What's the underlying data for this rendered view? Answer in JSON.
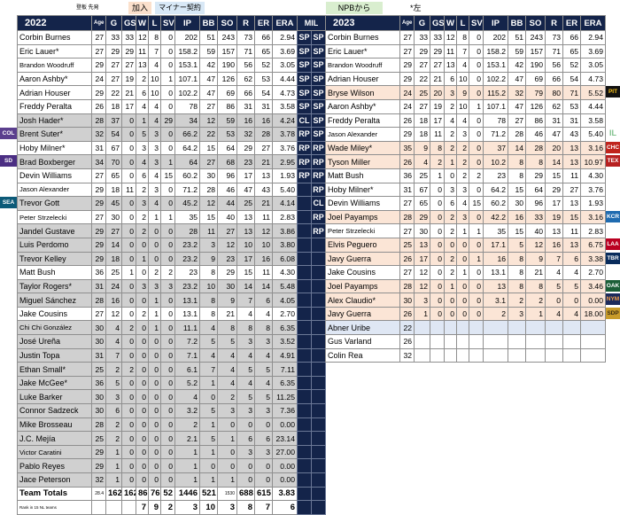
{
  "legend": {
    "tiny": "登板  先発",
    "joined": "加入",
    "minor": "マイナー契約",
    "npb": "NPBから",
    "lefty": "*左"
  },
  "left": {
    "headers": [
      "2022",
      "Age",
      "G",
      "GS",
      "W",
      "L",
      "SV",
      "IP",
      "BB",
      "SO",
      "R",
      "ER",
      "ERA"
    ],
    "rows": [
      {
        "c": "w",
        "cells": [
          "Corbin Burnes",
          "27",
          "33",
          "33",
          "12",
          "8",
          "0",
          "202",
          "51",
          "243",
          "73",
          "66",
          "2.94"
        ]
      },
      {
        "c": "w",
        "cells": [
          "Eric Lauer*",
          "27",
          "29",
          "29",
          "11",
          "7",
          "0",
          "158.2",
          "59",
          "157",
          "71",
          "65",
          "3.69"
        ]
      },
      {
        "c": "w",
        "cells": [
          "Brandon Woodruff",
          "29",
          "27",
          "27",
          "13",
          "4",
          "0",
          "153.1",
          "42",
          "190",
          "56",
          "52",
          "3.05"
        ]
      },
      {
        "c": "w",
        "cells": [
          "Aaron Ashby*",
          "24",
          "27",
          "19",
          "2",
          "10",
          "1",
          "107.1",
          "47",
          "126",
          "62",
          "53",
          "4.44"
        ]
      },
      {
        "c": "w",
        "cells": [
          "Adrian Houser",
          "29",
          "22",
          "21",
          "6",
          "10",
          "0",
          "102.2",
          "47",
          "69",
          "66",
          "54",
          "4.73"
        ]
      },
      {
        "c": "w",
        "cells": [
          "Freddy Peralta",
          "26",
          "18",
          "17",
          "4",
          "4",
          "0",
          "78",
          "27",
          "86",
          "31",
          "31",
          "3.58"
        ]
      },
      {
        "c": "g",
        "cells": [
          "Josh Hader*",
          "28",
          "37",
          "0",
          "1",
          "4",
          "29",
          "34",
          "12",
          "59",
          "16",
          "16",
          "4.24"
        ]
      },
      {
        "c": "g",
        "cells": [
          "Brent Suter*",
          "32",
          "54",
          "0",
          "5",
          "3",
          "0",
          "66.2",
          "22",
          "53",
          "32",
          "28",
          "3.78"
        ]
      },
      {
        "c": "w",
        "cells": [
          "Hoby Milner*",
          "31",
          "67",
          "0",
          "3",
          "3",
          "0",
          "64.2",
          "15",
          "64",
          "29",
          "27",
          "3.76"
        ]
      },
      {
        "c": "g",
        "cells": [
          "Brad Boxberger",
          "34",
          "70",
          "0",
          "4",
          "3",
          "1",
          "64",
          "27",
          "68",
          "23",
          "21",
          "2.95"
        ]
      },
      {
        "c": "w",
        "cells": [
          "Devin Williams",
          "27",
          "65",
          "0",
          "6",
          "4",
          "15",
          "60.2",
          "30",
          "96",
          "17",
          "13",
          "1.93"
        ]
      },
      {
        "c": "w",
        "cells": [
          "Jason Alexander",
          "29",
          "18",
          "11",
          "2",
          "3",
          "0",
          "71.2",
          "28",
          "46",
          "47",
          "43",
          "5.40"
        ]
      },
      {
        "c": "g",
        "cells": [
          "Trevor Gott",
          "29",
          "45",
          "0",
          "3",
          "4",
          "0",
          "45.2",
          "12",
          "44",
          "25",
          "21",
          "4.14"
        ]
      },
      {
        "c": "w",
        "cells": [
          "Peter Strzelecki",
          "27",
          "30",
          "0",
          "2",
          "1",
          "1",
          "35",
          "15",
          "40",
          "13",
          "11",
          "2.83"
        ]
      },
      {
        "c": "g",
        "cells": [
          "Jandel Gustave",
          "29",
          "27",
          "0",
          "2",
          "0",
          "0",
          "28",
          "11",
          "27",
          "13",
          "12",
          "3.86"
        ]
      },
      {
        "c": "g",
        "cells": [
          "Luis Perdomo",
          "29",
          "14",
          "0",
          "0",
          "0",
          "0",
          "23.2",
          "3",
          "12",
          "10",
          "10",
          "3.80"
        ]
      },
      {
        "c": "g",
        "cells": [
          "Trevor Kelley",
          "29",
          "18",
          "0",
          "1",
          "0",
          "0",
          "23.2",
          "9",
          "23",
          "17",
          "16",
          "6.08"
        ]
      },
      {
        "c": "w",
        "cells": [
          "Matt Bush",
          "36",
          "25",
          "1",
          "0",
          "2",
          "2",
          "23",
          "8",
          "29",
          "15",
          "11",
          "4.30"
        ]
      },
      {
        "c": "g",
        "cells": [
          "Taylor Rogers*",
          "31",
          "24",
          "0",
          "3",
          "3",
          "3",
          "23.2",
          "10",
          "30",
          "14",
          "14",
          "5.48"
        ]
      },
      {
        "c": "g",
        "cells": [
          "Miguel Sánchez",
          "28",
          "16",
          "0",
          "0",
          "1",
          "0",
          "13.1",
          "8",
          "9",
          "7",
          "6",
          "4.05"
        ]
      },
      {
        "c": "w",
        "cells": [
          "Jake Cousins",
          "27",
          "12",
          "0",
          "2",
          "1",
          "0",
          "13.1",
          "8",
          "21",
          "4",
          "4",
          "2.70"
        ]
      },
      {
        "c": "g",
        "cells": [
          "Chi Chi González",
          "30",
          "4",
          "2",
          "0",
          "1",
          "0",
          "11.1",
          "4",
          "8",
          "8",
          "8",
          "6.35"
        ]
      },
      {
        "c": "g",
        "cells": [
          "José Ureña",
          "30",
          "4",
          "0",
          "0",
          "0",
          "0",
          "7.2",
          "5",
          "5",
          "3",
          "3",
          "3.52"
        ]
      },
      {
        "c": "g",
        "cells": [
          "Justin Topa",
          "31",
          "7",
          "0",
          "0",
          "0",
          "0",
          "7.1",
          "4",
          "4",
          "4",
          "4",
          "4.91"
        ]
      },
      {
        "c": "g",
        "cells": [
          "Ethan Small*",
          "25",
          "2",
          "2",
          "0",
          "0",
          "0",
          "6.1",
          "7",
          "4",
          "5",
          "5",
          "7.11"
        ]
      },
      {
        "c": "g",
        "cells": [
          "Jake McGee*",
          "36",
          "5",
          "0",
          "0",
          "0",
          "0",
          "5.2",
          "1",
          "4",
          "4",
          "4",
          "6.35"
        ]
      },
      {
        "c": "g",
        "cells": [
          "Luke Barker",
          "30",
          "3",
          "0",
          "0",
          "0",
          "0",
          "4",
          "0",
          "2",
          "5",
          "5",
          "11.25"
        ]
      },
      {
        "c": "g",
        "cells": [
          "Connor Sadzeck",
          "30",
          "6",
          "0",
          "0",
          "0",
          "0",
          "3.2",
          "5",
          "3",
          "3",
          "3",
          "7.36"
        ]
      },
      {
        "c": "g",
        "cells": [
          "Mike Brosseau",
          "28",
          "2",
          "0",
          "0",
          "0",
          "0",
          "2",
          "1",
          "0",
          "0",
          "0",
          "0.00"
        ]
      },
      {
        "c": "g",
        "cells": [
          "J.C. Mejía",
          "25",
          "2",
          "0",
          "0",
          "0",
          "0",
          "2.1",
          "5",
          "1",
          "6",
          "6",
          "23.14"
        ]
      },
      {
        "c": "g",
        "cells": [
          "Victor Caratini",
          "29",
          "1",
          "0",
          "0",
          "0",
          "0",
          "1",
          "1",
          "0",
          "3",
          "3",
          "27.00"
        ]
      },
      {
        "c": "g",
        "cells": [
          "Pablo Reyes",
          "29",
          "1",
          "0",
          "0",
          "0",
          "0",
          "1",
          "0",
          "0",
          "0",
          "0",
          "0.00"
        ]
      },
      {
        "c": "g",
        "cells": [
          "Jace Peterson",
          "32",
          "1",
          "0",
          "0",
          "0",
          "0",
          "1",
          "1",
          "1",
          "0",
          "0",
          "0.00"
        ]
      }
    ],
    "totals": [
      "Team Totals",
      "28.4",
      "162",
      "162",
      "86",
      "76",
      "52",
      "1446",
      "521",
      "1530",
      "688",
      "615",
      "3.83"
    ],
    "rank": [
      "Rank in 15 NL teams",
      "",
      "",
      "",
      "7",
      "9",
      "2",
      "3",
      "10",
      "3",
      "8",
      "7",
      "6"
    ]
  },
  "mil": {
    "header": "MIL",
    "rows": [
      [
        "SP",
        "SP"
      ],
      [
        "SP",
        "SP"
      ],
      [
        "SP",
        "SP"
      ],
      [
        "SP",
        "SP"
      ],
      [
        "SP",
        "SP"
      ],
      [
        "SP",
        "SP"
      ],
      [
        "CL",
        "SP"
      ],
      [
        "RP",
        "SP"
      ],
      [
        "RP",
        "RP"
      ],
      [
        "RP",
        "RP"
      ],
      [
        "RP",
        "RP"
      ],
      [
        "",
        "RP"
      ],
      [
        "",
        "CL"
      ],
      [
        "",
        "RP"
      ],
      [
        "",
        "RP"
      ],
      [
        "",
        ""
      ],
      [
        "",
        ""
      ],
      [
        "",
        ""
      ],
      [
        "",
        ""
      ],
      [
        "",
        ""
      ],
      [
        "",
        ""
      ],
      [
        "",
        ""
      ],
      [
        "",
        ""
      ],
      [
        "",
        ""
      ],
      [
        "",
        ""
      ],
      [
        "",
        ""
      ],
      [
        "",
        ""
      ],
      [
        "",
        ""
      ],
      [
        "",
        ""
      ],
      [
        "",
        ""
      ],
      [
        "",
        ""
      ],
      [
        "",
        ""
      ],
      [
        "",
        ""
      ],
      [
        "",
        ""
      ],
      [
        "",
        ""
      ]
    ]
  },
  "right": {
    "headers": [
      "2023",
      "Age",
      "G",
      "GS",
      "W",
      "L",
      "SV",
      "IP",
      "BB",
      "SO",
      "R",
      "ER",
      "ERA"
    ],
    "rows": [
      {
        "c": "w",
        "cells": [
          "Corbin Burnes",
          "27",
          "33",
          "33",
          "12",
          "8",
          "0",
          "202",
          "51",
          "243",
          "73",
          "66",
          "2.94"
        ]
      },
      {
        "c": "w",
        "cells": [
          "Eric Lauer*",
          "27",
          "29",
          "29",
          "11",
          "7",
          "0",
          "158.2",
          "59",
          "157",
          "71",
          "65",
          "3.69"
        ]
      },
      {
        "c": "w",
        "cells": [
          "Brandon Woodruff",
          "29",
          "27",
          "27",
          "13",
          "4",
          "0",
          "153.1",
          "42",
          "190",
          "56",
          "52",
          "3.05"
        ]
      },
      {
        "c": "w",
        "cells": [
          "Adrian Houser",
          "29",
          "22",
          "21",
          "6",
          "10",
          "0",
          "102.2",
          "47",
          "69",
          "66",
          "54",
          "4.73"
        ]
      },
      {
        "c": "p",
        "cells": [
          "Bryse Wilson",
          "24",
          "25",
          "20",
          "3",
          "9",
          "0",
          "115.2",
          "32",
          "79",
          "80",
          "71",
          "5.52"
        ]
      },
      {
        "c": "w",
        "cells": [
          "Aaron Ashby*",
          "24",
          "27",
          "19",
          "2",
          "10",
          "1",
          "107.1",
          "47",
          "126",
          "62",
          "53",
          "4.44"
        ]
      },
      {
        "c": "w",
        "cells": [
          "Freddy Peralta",
          "26",
          "18",
          "17",
          "4",
          "4",
          "0",
          "78",
          "27",
          "86",
          "31",
          "31",
          "3.58"
        ]
      },
      {
        "c": "w",
        "cells": [
          "Jason Alexander",
          "29",
          "18",
          "11",
          "2",
          "3",
          "0",
          "71.2",
          "28",
          "46",
          "47",
          "43",
          "5.40"
        ]
      },
      {
        "c": "p",
        "cells": [
          "Wade Miley*",
          "35",
          "9",
          "8",
          "2",
          "2",
          "0",
          "37",
          "14",
          "28",
          "20",
          "13",
          "3.16"
        ]
      },
      {
        "c": "p",
        "cells": [
          "Tyson Miller",
          "26",
          "4",
          "2",
          "1",
          "2",
          "0",
          "10.2",
          "8",
          "8",
          "14",
          "13",
          "10.97"
        ]
      },
      {
        "c": "w",
        "cells": [
          "Matt Bush",
          "36",
          "25",
          "1",
          "0",
          "2",
          "2",
          "23",
          "8",
          "29",
          "15",
          "11",
          "4.30"
        ]
      },
      {
        "c": "w",
        "cells": [
          "Hoby Milner*",
          "31",
          "67",
          "0",
          "3",
          "3",
          "0",
          "64.2",
          "15",
          "64",
          "29",
          "27",
          "3.76"
        ]
      },
      {
        "c": "w",
        "cells": [
          "Devin Williams",
          "27",
          "65",
          "0",
          "6",
          "4",
          "15",
          "60.2",
          "30",
          "96",
          "17",
          "13",
          "1.93"
        ]
      },
      {
        "c": "p",
        "cells": [
          "Joel Payamps",
          "28",
          "29",
          "0",
          "2",
          "3",
          "0",
          "42.2",
          "16",
          "33",
          "19",
          "15",
          "3.16"
        ]
      },
      {
        "c": "w",
        "cells": [
          "Peter Strzelecki",
          "27",
          "30",
          "0",
          "2",
          "1",
          "1",
          "35",
          "15",
          "40",
          "13",
          "11",
          "2.83"
        ]
      },
      {
        "c": "p",
        "cells": [
          "Elvis Peguero",
          "25",
          "13",
          "0",
          "0",
          "0",
          "0",
          "17.1",
          "5",
          "12",
          "16",
          "13",
          "6.75"
        ]
      },
      {
        "c": "p",
        "cells": [
          "Javy Guerra",
          "26",
          "17",
          "0",
          "2",
          "0",
          "1",
          "16",
          "8",
          "9",
          "7",
          "6",
          "3.38"
        ]
      },
      {
        "c": "w",
        "cells": [
          "Jake Cousins",
          "27",
          "12",
          "0",
          "2",
          "1",
          "0",
          "13.1",
          "8",
          "21",
          "4",
          "4",
          "2.70"
        ]
      },
      {
        "c": "p",
        "cells": [
          "Joel Payamps",
          "28",
          "12",
          "0",
          "1",
          "0",
          "0",
          "13",
          "8",
          "8",
          "5",
          "5",
          "3.46"
        ]
      },
      {
        "c": "p",
        "cells": [
          "Alex Claudio*",
          "30",
          "3",
          "0",
          "0",
          "0",
          "0",
          "3.1",
          "2",
          "2",
          "0",
          "0",
          "0.00"
        ]
      },
      {
        "c": "p",
        "cells": [
          "Javy Guerra",
          "26",
          "1",
          "0",
          "0",
          "0",
          "0",
          "2",
          "3",
          "1",
          "4",
          "4",
          "18.00"
        ]
      },
      {
        "c": "b",
        "cells": [
          "Abner Uribe",
          "22",
          "",
          "",
          "",
          "",
          "",
          "",
          "",
          "",
          "",
          "",
          ""
        ]
      },
      {
        "c": "w",
        "cells": [
          "Gus Varland",
          "26",
          "",
          "",
          "",
          "",
          "",
          "",
          "",
          "",
          "",
          "",
          ""
        ]
      },
      {
        "c": "w",
        "cells": [
          "Colin Rea",
          "32",
          "",
          "",
          "",
          "",
          "",
          "",
          "",
          "",
          "",
          "",
          ""
        ]
      }
    ]
  },
  "side_tags_left": [
    {
      "text": "COL",
      "row": 7,
      "color": "#5b3f8e"
    },
    {
      "text": "SD",
      "row": 9,
      "color": "#4b2e83"
    },
    {
      "text": "SEA",
      "row": 12,
      "color": "#0c5a78"
    }
  ],
  "side_tags_right": [
    {
      "text": "PIT",
      "row": 4,
      "color": "#111111",
      "fg": "#f6c21b"
    },
    {
      "text": "IL",
      "row": 7,
      "color": "",
      "fg": "#7ec08b"
    },
    {
      "text": "CHC",
      "row": 8,
      "color": "#c0241c"
    },
    {
      "text": "TEX",
      "row": 9,
      "color": "#b72020"
    },
    {
      "text": "KCR",
      "row": 13,
      "color": "#1f6bb0"
    },
    {
      "text": "LAA",
      "row": 15,
      "color": "#ba0021"
    },
    {
      "text": "TBR",
      "row": 16,
      "color": "#092c5c"
    },
    {
      "text": "OAK",
      "row": 18,
      "color": "#1b5e37"
    },
    {
      "text": "NYM",
      "row": 19,
      "color": "#1d2b5c",
      "fg": "#f5a14a"
    },
    {
      "text": "SDP",
      "row": 20,
      "color": "#c89b2a",
      "fg": "#3a2b12"
    }
  ]
}
